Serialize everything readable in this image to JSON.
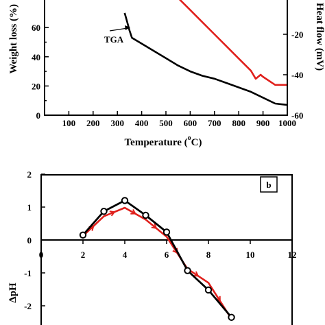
{
  "chart_data": [
    {
      "id": "a",
      "type": "line",
      "xlabel_main": "Temperature (",
      "xlabel_degree": "o",
      "xlabel_unit": "C)",
      "ylabel": "Weight loss (%)",
      "y2label": "Heat flow (mV)",
      "xlim": [
        0,
        1000
      ],
      "ylim": [
        0,
        70
      ],
      "y2lim": [
        -60,
        0
      ],
      "xticks": [
        100,
        200,
        300,
        400,
        500,
        600,
        700,
        800,
        900,
        1000
      ],
      "yticks": [
        20,
        40,
        60
      ],
      "y2ticks": [
        -60,
        -40,
        -20
      ],
      "annotation": "TGA",
      "series": [
        {
          "name": "TGA",
          "axis": "left",
          "color": "#000000",
          "x": [
            330,
            340,
            350,
            360,
            380,
            400,
            450,
            500,
            550,
            600,
            650,
            700,
            750,
            800,
            850,
            900,
            950,
            1000
          ],
          "y": [
            70,
            64,
            58,
            53,
            51,
            49,
            44,
            39,
            34,
            30,
            27,
            25,
            22,
            19,
            16,
            12,
            8,
            7
          ]
        },
        {
          "name": "Heat flow",
          "axis": "right",
          "color": "#e0201c",
          "x": [
            550,
            600,
            650,
            700,
            750,
            800,
            850,
            870,
            880,
            890,
            900,
            950,
            1000
          ],
          "y2": [
            -2,
            -8,
            -14,
            -20,
            -26,
            -32,
            -38,
            -42,
            -41,
            -40,
            -41,
            -45,
            -45
          ]
        }
      ]
    },
    {
      "id": "b",
      "type": "line",
      "ylabel": "ΔpH",
      "xlim": [
        0,
        12
      ],
      "ylim": [
        -2.5,
        2
      ],
      "xticks": [
        0,
        2,
        4,
        6,
        8,
        10,
        12
      ],
      "yticks": [
        2,
        1,
        0,
        -1,
        -2
      ],
      "panel_label": "b",
      "series": [
        {
          "color": "#000000",
          "markers": "circle",
          "x": [
            2,
            3,
            4,
            5,
            6,
            7,
            8,
            9.1
          ],
          "y": [
            0.15,
            0.87,
            1.2,
            0.75,
            0.24,
            -0.93,
            -1.52,
            -2.35
          ]
        },
        {
          "color": "#e0201c",
          "markers": "none",
          "x": [
            2,
            3,
            4,
            5,
            6,
            7,
            8,
            9.1
          ],
          "y": [
            0.12,
            0.72,
            0.98,
            0.62,
            0.1,
            -0.88,
            -1.3,
            -2.4
          ]
        }
      ]
    }
  ]
}
